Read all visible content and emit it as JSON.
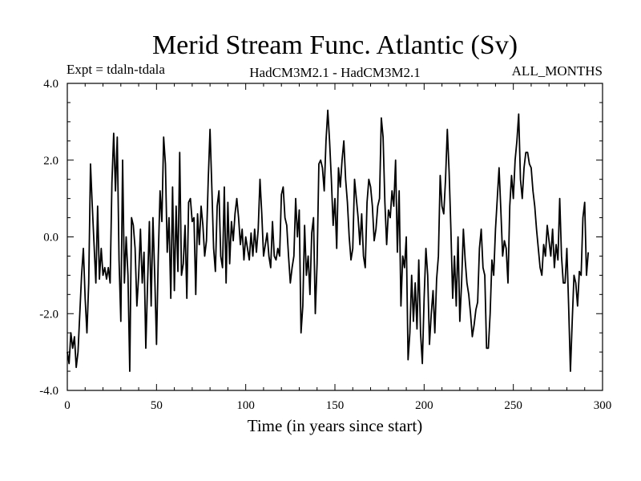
{
  "chart_data": {
    "type": "line",
    "title": "Merid Stream Func. Atlantic (Sv)",
    "subtitle_left": "Expt = tdaln-tdala",
    "subtitle_center": "HadCM3M2.1 - HadCM3M2.1",
    "subtitle_right": "ALL_MONTHS",
    "xlabel": "Time (in years since start)",
    "ylabel": "",
    "xlim": [
      0,
      300
    ],
    "ylim": [
      -4.0,
      4.0
    ],
    "x_ticks": [
      0,
      50,
      100,
      150,
      200,
      250,
      300
    ],
    "x_tick_labels": [
      "0",
      "50",
      "100",
      "150",
      "200",
      "250",
      "300"
    ],
    "y_ticks": [
      -4.0,
      -2.0,
      0.0,
      2.0,
      4.0
    ],
    "y_tick_labels": [
      "-4.0",
      "-2.0",
      "0.0",
      "2.0",
      "4.0"
    ],
    "grid": false,
    "line_color": "#000000",
    "series": [
      {
        "x_start": 0,
        "x_step": 1,
        "values": [
          -3.0,
          -3.3,
          -2.5,
          -2.9,
          -2.6,
          -3.4,
          -3.0,
          -2.0,
          -1.0,
          -0.3,
          -1.6,
          -2.5,
          -1.2,
          1.9,
          0.8,
          -0.2,
          -1.2,
          0.8,
          -1.1,
          -0.3,
          -1.0,
          -0.8,
          -1.1,
          -0.8,
          -1.2,
          1.4,
          2.7,
          1.2,
          2.6,
          -0.6,
          -2.2,
          2.0,
          -1.2,
          0.0,
          -1.0,
          -3.5,
          0.5,
          0.3,
          -0.3,
          -1.8,
          -1.0,
          0.2,
          -1.2,
          -0.4,
          -2.9,
          -1.2,
          0.4,
          -1.8,
          0.5,
          -1.0,
          -2.8,
          -0.5,
          1.2,
          0.4,
          2.6,
          1.9,
          -0.4,
          0.5,
          -1.6,
          1.3,
          -1.4,
          0.8,
          -0.9,
          2.2,
          -1.0,
          -0.7,
          0.3,
          -1.6,
          0.9,
          1.0,
          0.4,
          0.5,
          -1.5,
          0.6,
          -0.2,
          0.8,
          0.3,
          -0.5,
          -0.1,
          1.5,
          2.8,
          1.3,
          -0.3,
          -0.9,
          0.8,
          1.2,
          -0.5,
          -0.8,
          1.3,
          -1.2,
          0.9,
          -0.7,
          0.4,
          -0.1,
          0.6,
          1.0,
          0.5,
          -0.2,
          0.2,
          -0.6,
          0.0,
          -0.3,
          -0.6,
          0.1,
          -0.5,
          0.2,
          -0.4,
          0.2,
          1.5,
          0.6,
          -0.5,
          -0.2,
          0.1,
          -0.5,
          -0.8,
          0.4,
          -0.5,
          -0.6,
          -0.3,
          -0.5,
          1.1,
          1.3,
          0.5,
          0.3,
          -0.5,
          -1.2,
          -0.8,
          -0.5,
          1.0,
          0.0,
          0.7,
          -2.5,
          -1.8,
          0.3,
          -1.0,
          -0.5,
          -1.5,
          0.1,
          0.5,
          -2.0,
          -0.7,
          1.9,
          2.0,
          1.8,
          1.2,
          2.5,
          3.3,
          2.5,
          1.5,
          0.3,
          1.0,
          -0.3,
          1.8,
          1.3,
          2.0,
          2.5,
          1.5,
          0.9,
          0.0,
          -0.6,
          -0.3,
          1.5,
          1.0,
          0.5,
          -0.2,
          0.6,
          -0.5,
          -0.8,
          0.9,
          1.5,
          1.3,
          0.8,
          -0.1,
          0.2,
          0.8,
          1.0,
          3.1,
          2.6,
          0.9,
          -0.2,
          0.7,
          0.5,
          1.2,
          0.8,
          2.0,
          -0.4,
          1.2,
          -1.8,
          -0.5,
          -0.8,
          0.0,
          -3.2,
          -2.5,
          -1.0,
          -2.2,
          -1.2,
          -2.4,
          -0.6,
          -2.5,
          -3.3,
          -1.6,
          -0.3,
          -1.0,
          -2.8,
          -2.0,
          -1.4,
          -2.5,
          -1.1,
          -0.5,
          1.6,
          0.8,
          0.6,
          1.5,
          2.8,
          1.7,
          0.2,
          -1.6,
          -0.5,
          -1.8,
          0.0,
          -2.2,
          -1.2,
          0.2,
          -0.6,
          -1.2,
          -1.5,
          -2.0,
          -2.6,
          -2.3,
          -1.9,
          -1.7,
          -0.3,
          0.2,
          -0.8,
          -1.0,
          -2.9,
          -2.9,
          -2.0,
          -0.6,
          -1.0,
          0.2,
          1.0,
          1.8,
          0.7,
          -0.5,
          -0.1,
          -0.3,
          -1.2,
          0.8,
          1.6,
          1.0,
          2.0,
          2.5,
          3.2,
          1.5,
          1.0,
          1.8,
          2.2,
          2.2,
          1.9,
          1.8,
          1.2,
          0.8,
          0.2,
          -0.3,
          -0.8,
          -1.0,
          -0.2,
          -0.5,
          0.3,
          -0.1,
          -0.5,
          0.2,
          -0.8,
          -0.2,
          -0.6,
          1.0,
          -0.5,
          -1.2,
          -1.2,
          -0.3,
          -1.8,
          -3.5,
          -2.2,
          -1.0,
          -1.2,
          -1.8,
          -0.9,
          -1.0,
          0.5,
          0.9,
          -1.0,
          -0.4
        ]
      }
    ]
  }
}
